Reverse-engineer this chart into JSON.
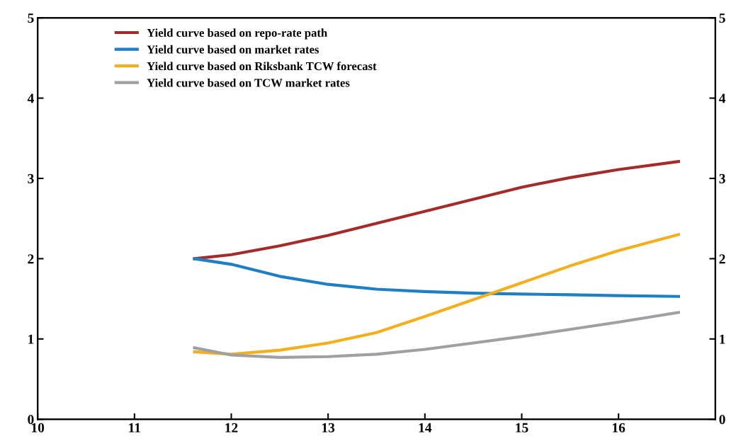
{
  "chart_data": {
    "type": "line",
    "x": [
      11.62,
      12,
      12.5,
      13,
      13.5,
      14,
      14.5,
      15,
      15.5,
      16,
      16.62
    ],
    "series": [
      {
        "name": "Yield curve based on repo-rate path",
        "color": "#a52a2a",
        "values": [
          2.0,
          2.05,
          2.16,
          2.29,
          2.44,
          2.59,
          2.74,
          2.89,
          3.01,
          3.11,
          3.21
        ]
      },
      {
        "name": "Yield curve based on market rates",
        "color": "#1f7fc4",
        "values": [
          2.0,
          1.93,
          1.78,
          1.68,
          1.62,
          1.59,
          1.57,
          1.56,
          1.55,
          1.54,
          1.53
        ]
      },
      {
        "name": "Yield curve based on Riksbank TCW forecast",
        "color": "#f2b01e",
        "values": [
          0.84,
          0.81,
          0.86,
          0.95,
          1.08,
          1.28,
          1.49,
          1.7,
          1.91,
          2.1,
          2.3
        ]
      },
      {
        "name": "Yield curve based on TCW market rates",
        "color": "#a0a0a0",
        "values": [
          0.89,
          0.8,
          0.77,
          0.78,
          0.81,
          0.87,
          0.95,
          1.03,
          1.12,
          1.21,
          1.33
        ]
      }
    ],
    "xlim": [
      10,
      17
    ],
    "xticks": [
      10,
      11,
      12,
      13,
      14,
      15,
      16
    ],
    "ylim": [
      0,
      5
    ],
    "yticks": [
      0,
      1,
      2,
      3,
      4,
      5
    ],
    "y2lim": [
      0,
      5
    ],
    "y2ticks": [
      0,
      1,
      2,
      3,
      4,
      5
    ],
    "grid": false,
    "legend": "top left",
    "marker": "none",
    "line_style": "solid"
  }
}
